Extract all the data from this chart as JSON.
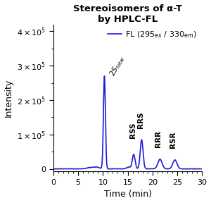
{
  "title_line1": "Stereoisomers of α-T",
  "title_line2": "by HPLC-FL",
  "xlabel": "Time (min)",
  "ylabel": "Intensity",
  "xlim": [
    0,
    30
  ],
  "ylim": [
    -8000,
    420000
  ],
  "yticks": [
    0,
    100000,
    200000,
    300000,
    400000
  ],
  "xticks": [
    0,
    5,
    10,
    15,
    20,
    25,
    30
  ],
  "line_color": "#1c1cd6",
  "line_width": 1.2,
  "background_color": "#ffffff",
  "title_fontsize": 9.5,
  "axis_label_fontsize": 9,
  "tick_fontsize": 8,
  "legend_fontsize": 8,
  "annotation_fontsize": 7.5
}
